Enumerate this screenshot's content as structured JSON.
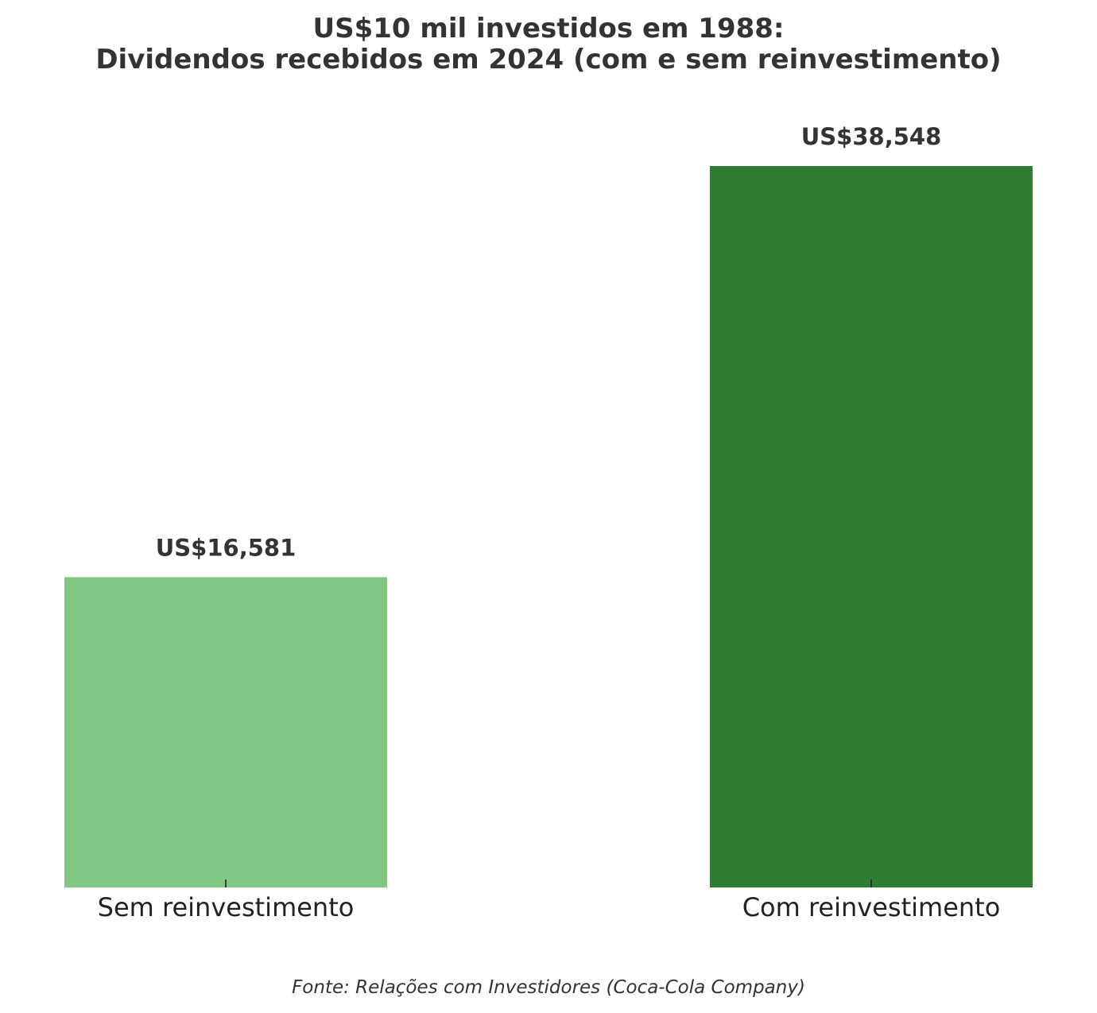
{
  "chart_data": {
    "type": "bar",
    "title_line1": "US$10 mil investidos em 1988:",
    "title_line2": "Dividendos recebidos em 2024 (com e sem reinvestimento)",
    "xlabel": "",
    "ylabel": "",
    "categories": [
      "Sem reinvestimento",
      "Com reinvestimento"
    ],
    "values": [
      16581,
      38548
    ],
    "value_labels": [
      "US$16,581",
      "US$38,548"
    ],
    "colors": [
      "#81c784",
      "#2e7d32"
    ],
    "ylim": [
      0,
      40000
    ],
    "grid": false,
    "legend": "none",
    "source": "Fonte: Relações com Investidores (Coca-Cola Company)"
  }
}
